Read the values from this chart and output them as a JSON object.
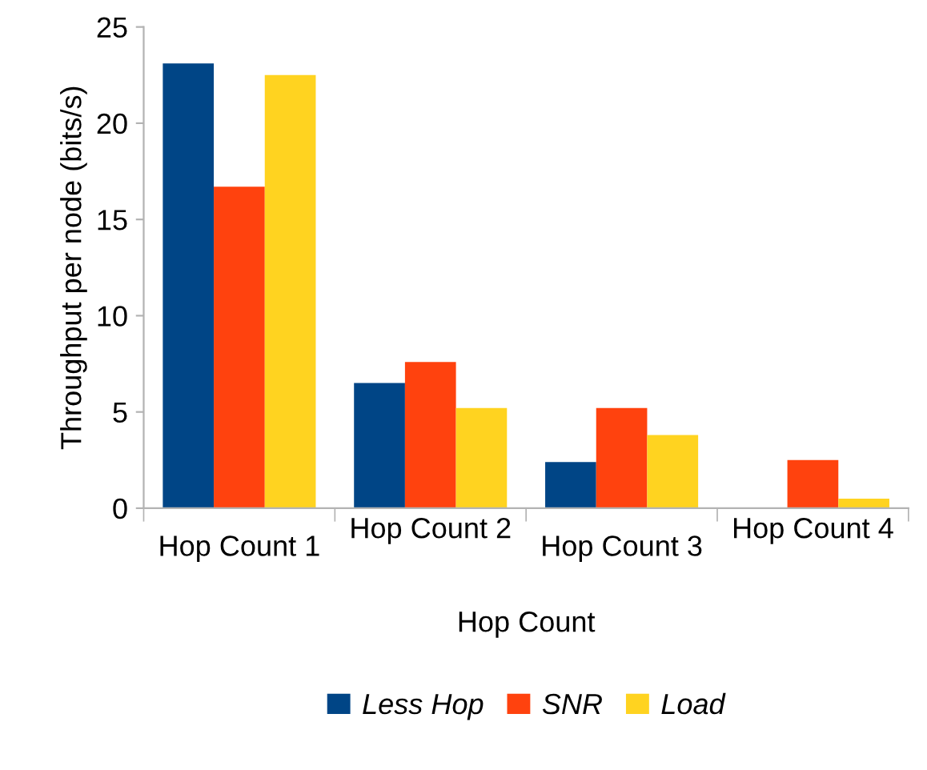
{
  "chart_data": {
    "type": "bar",
    "xlabel": "Hop Count",
    "ylabel": "Throughput per node (bits/s)",
    "categories": [
      "Hop Count 1",
      "Hop Count 2",
      "Hop Count 3",
      "Hop Count 4"
    ],
    "series": [
      {
        "name": "Less Hop",
        "color": "#004586",
        "values": [
          23.1,
          6.5,
          2.4,
          0
        ]
      },
      {
        "name": "SNR",
        "color": "#ff420e",
        "values": [
          16.7,
          7.6,
          5.2,
          2.5
        ]
      },
      {
        "name": "Load",
        "color": "#ffd320",
        "values": [
          22.5,
          5.2,
          3.8,
          0.5
        ]
      }
    ],
    "ylim": [
      0,
      25
    ],
    "yticks": [
      0,
      5,
      10,
      15,
      20,
      25
    ],
    "grid": false,
    "legend": "bottom"
  }
}
